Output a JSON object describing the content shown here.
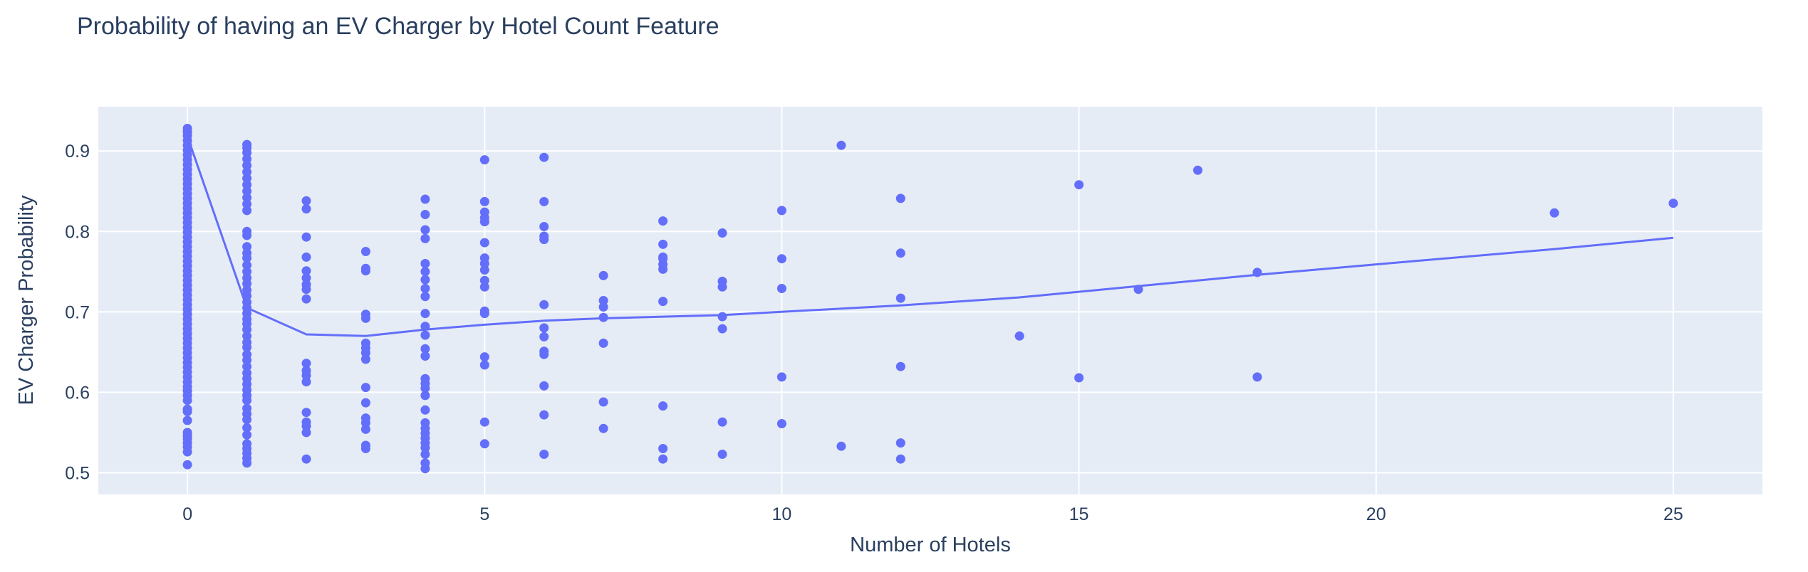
{
  "chart_data": {
    "type": "scatter",
    "title": "Probability of having an EV Charger by Hotel Count Feature",
    "xlabel": "Number of Hotels",
    "ylabel": "EV Charger Probability",
    "xlim": [
      -1.5,
      26.5
    ],
    "ylim": [
      0.473,
      0.955
    ],
    "xticks": [
      0,
      5,
      10,
      15,
      20,
      25
    ],
    "yticks": [
      0.5,
      0.6,
      0.7,
      0.8,
      0.9
    ],
    "tick_labels_x": [
      "0",
      "5",
      "10",
      "15",
      "20",
      "25"
    ],
    "tick_labels_y": [
      "0.5",
      "0.6",
      "0.7",
      "0.8",
      "0.9"
    ],
    "grid": true,
    "legend": "none",
    "marker_color": "#636efa",
    "plot_bg": "#e5ecf6",
    "series": [
      {
        "mode": "markers",
        "points": [
          [
            0,
            0.51
          ],
          [
            0,
            0.526
          ],
          [
            0,
            0.532
          ],
          [
            0,
            0.537
          ],
          [
            0,
            0.542
          ],
          [
            0,
            0.546
          ],
          [
            0,
            0.55
          ],
          [
            0,
            0.565
          ],
          [
            0,
            0.576
          ],
          [
            0,
            0.579
          ],
          [
            0,
            0.59
          ],
          [
            0,
            0.596
          ],
          [
            0,
            0.602
          ],
          [
            0,
            0.607
          ],
          [
            0,
            0.613
          ],
          [
            0,
            0.619
          ],
          [
            0,
            0.625
          ],
          [
            0,
            0.631
          ],
          [
            0,
            0.637
          ],
          [
            0,
            0.643
          ],
          [
            0,
            0.649
          ],
          [
            0,
            0.655
          ],
          [
            0,
            0.661
          ],
          [
            0,
            0.667
          ],
          [
            0,
            0.673
          ],
          [
            0,
            0.679
          ],
          [
            0,
            0.685
          ],
          [
            0,
            0.691
          ],
          [
            0,
            0.697
          ],
          [
            0,
            0.703
          ],
          [
            0,
            0.709
          ],
          [
            0,
            0.715
          ],
          [
            0,
            0.721
          ],
          [
            0,
            0.727
          ],
          [
            0,
            0.733
          ],
          [
            0,
            0.739
          ],
          [
            0,
            0.745
          ],
          [
            0,
            0.751
          ],
          [
            0,
            0.757
          ],
          [
            0,
            0.763
          ],
          [
            0,
            0.769
          ],
          [
            0,
            0.775
          ],
          [
            0,
            0.781
          ],
          [
            0,
            0.787
          ],
          [
            0,
            0.793
          ],
          [
            0,
            0.799
          ],
          [
            0,
            0.805
          ],
          [
            0,
            0.811
          ],
          [
            0,
            0.817
          ],
          [
            0,
            0.823
          ],
          [
            0,
            0.829
          ],
          [
            0,
            0.835
          ],
          [
            0,
            0.841
          ],
          [
            0,
            0.847
          ],
          [
            0,
            0.853
          ],
          [
            0,
            0.859
          ],
          [
            0,
            0.865
          ],
          [
            0,
            0.871
          ],
          [
            0,
            0.877
          ],
          [
            0,
            0.883
          ],
          [
            0,
            0.889
          ],
          [
            0,
            0.895
          ],
          [
            0,
            0.901
          ],
          [
            0,
            0.907
          ],
          [
            0,
            0.913
          ],
          [
            0,
            0.919
          ],
          [
            0,
            0.924
          ],
          [
            0,
            0.928
          ],
          [
            1,
            0.512
          ],
          [
            1,
            0.518
          ],
          [
            1,
            0.524
          ],
          [
            1,
            0.53
          ],
          [
            1,
            0.536
          ],
          [
            1,
            0.547
          ],
          [
            1,
            0.556
          ],
          [
            1,
            0.566
          ],
          [
            1,
            0.573
          ],
          [
            1,
            0.58
          ],
          [
            1,
            0.59
          ],
          [
            1,
            0.596
          ],
          [
            1,
            0.603
          ],
          [
            1,
            0.61
          ],
          [
            1,
            0.617
          ],
          [
            1,
            0.624
          ],
          [
            1,
            0.632
          ],
          [
            1,
            0.64
          ],
          [
            1,
            0.647
          ],
          [
            1,
            0.656
          ],
          [
            1,
            0.662
          ],
          [
            1,
            0.67
          ],
          [
            1,
            0.678
          ],
          [
            1,
            0.685
          ],
          [
            1,
            0.691
          ],
          [
            1,
            0.698
          ],
          [
            1,
            0.705
          ],
          [
            1,
            0.712
          ],
          [
            1,
            0.72
          ],
          [
            1,
            0.727
          ],
          [
            1,
            0.735
          ],
          [
            1,
            0.742
          ],
          [
            1,
            0.75
          ],
          [
            1,
            0.758
          ],
          [
            1,
            0.767
          ],
          [
            1,
            0.773
          ],
          [
            1,
            0.781
          ],
          [
            1,
            0.795
          ],
          [
            1,
            0.8
          ],
          [
            1,
            0.826
          ],
          [
            1,
            0.834
          ],
          [
            1,
            0.842
          ],
          [
            1,
            0.85
          ],
          [
            1,
            0.858
          ],
          [
            1,
            0.866
          ],
          [
            1,
            0.874
          ],
          [
            1,
            0.882
          ],
          [
            1,
            0.89
          ],
          [
            1,
            0.898
          ],
          [
            1,
            0.904
          ],
          [
            1,
            0.908
          ],
          [
            2,
            0.517
          ],
          [
            2,
            0.55
          ],
          [
            2,
            0.558
          ],
          [
            2,
            0.563
          ],
          [
            2,
            0.575
          ],
          [
            2,
            0.613
          ],
          [
            2,
            0.621
          ],
          [
            2,
            0.627
          ],
          [
            2,
            0.636
          ],
          [
            2,
            0.716
          ],
          [
            2,
            0.728
          ],
          [
            2,
            0.734
          ],
          [
            2,
            0.742
          ],
          [
            2,
            0.751
          ],
          [
            2,
            0.768
          ],
          [
            2,
            0.793
          ],
          [
            2,
            0.828
          ],
          [
            2,
            0.838
          ],
          [
            3,
            0.53
          ],
          [
            3,
            0.534
          ],
          [
            3,
            0.554
          ],
          [
            3,
            0.562
          ],
          [
            3,
            0.568
          ],
          [
            3,
            0.587
          ],
          [
            3,
            0.606
          ],
          [
            3,
            0.641
          ],
          [
            3,
            0.649
          ],
          [
            3,
            0.655
          ],
          [
            3,
            0.661
          ],
          [
            3,
            0.692
          ],
          [
            3,
            0.697
          ],
          [
            3,
            0.751
          ],
          [
            3,
            0.754
          ],
          [
            3,
            0.775
          ],
          [
            4,
            0.505
          ],
          [
            4,
            0.512
          ],
          [
            4,
            0.523
          ],
          [
            4,
            0.531
          ],
          [
            4,
            0.537
          ],
          [
            4,
            0.543
          ],
          [
            4,
            0.549
          ],
          [
            4,
            0.555
          ],
          [
            4,
            0.562
          ],
          [
            4,
            0.578
          ],
          [
            4,
            0.596
          ],
          [
            4,
            0.605
          ],
          [
            4,
            0.611
          ],
          [
            4,
            0.617
          ],
          [
            4,
            0.645
          ],
          [
            4,
            0.654
          ],
          [
            4,
            0.671
          ],
          [
            4,
            0.682
          ],
          [
            4,
            0.698
          ],
          [
            4,
            0.719
          ],
          [
            4,
            0.729
          ],
          [
            4,
            0.74
          ],
          [
            4,
            0.75
          ],
          [
            4,
            0.76
          ],
          [
            4,
            0.791
          ],
          [
            4,
            0.802
          ],
          [
            4,
            0.821
          ],
          [
            4,
            0.84
          ],
          [
            5,
            0.536
          ],
          [
            5,
            0.563
          ],
          [
            5,
            0.634
          ],
          [
            5,
            0.644
          ],
          [
            5,
            0.698
          ],
          [
            5,
            0.701
          ],
          [
            5,
            0.731
          ],
          [
            5,
            0.739
          ],
          [
            5,
            0.752
          ],
          [
            5,
            0.76
          ],
          [
            5,
            0.767
          ],
          [
            5,
            0.786
          ],
          [
            5,
            0.812
          ],
          [
            5,
            0.817
          ],
          [
            5,
            0.824
          ],
          [
            5,
            0.837
          ],
          [
            5,
            0.889
          ],
          [
            6,
            0.523
          ],
          [
            6,
            0.572
          ],
          [
            6,
            0.608
          ],
          [
            6,
            0.647
          ],
          [
            6,
            0.651
          ],
          [
            6,
            0.669
          ],
          [
            6,
            0.68
          ],
          [
            6,
            0.709
          ],
          [
            6,
            0.79
          ],
          [
            6,
            0.794
          ],
          [
            6,
            0.806
          ],
          [
            6,
            0.837
          ],
          [
            6,
            0.892
          ],
          [
            7,
            0.555
          ],
          [
            7,
            0.588
          ],
          [
            7,
            0.661
          ],
          [
            7,
            0.693
          ],
          [
            7,
            0.706
          ],
          [
            7,
            0.714
          ],
          [
            7,
            0.745
          ],
          [
            8,
            0.517
          ],
          [
            8,
            0.53
          ],
          [
            8,
            0.583
          ],
          [
            8,
            0.713
          ],
          [
            8,
            0.753
          ],
          [
            8,
            0.759
          ],
          [
            8,
            0.766
          ],
          [
            8,
            0.768
          ],
          [
            8,
            0.784
          ],
          [
            8,
            0.813
          ],
          [
            9,
            0.523
          ],
          [
            9,
            0.563
          ],
          [
            9,
            0.679
          ],
          [
            9,
            0.694
          ],
          [
            9,
            0.731
          ],
          [
            9,
            0.738
          ],
          [
            9,
            0.798
          ],
          [
            10,
            0.561
          ],
          [
            10,
            0.619
          ],
          [
            10,
            0.729
          ],
          [
            10,
            0.766
          ],
          [
            10,
            0.826
          ],
          [
            11,
            0.533
          ],
          [
            11,
            0.907
          ],
          [
            12,
            0.517
          ],
          [
            12,
            0.537
          ],
          [
            12,
            0.632
          ],
          [
            12,
            0.717
          ],
          [
            12,
            0.773
          ],
          [
            12,
            0.841
          ],
          [
            14,
            0.67
          ],
          [
            15,
            0.618
          ],
          [
            15,
            0.858
          ],
          [
            16,
            0.728
          ],
          [
            17,
            0.876
          ],
          [
            18,
            0.619
          ],
          [
            18,
            0.749
          ],
          [
            23,
            0.823
          ],
          [
            25,
            0.835
          ]
        ]
      },
      {
        "mode": "lines",
        "points": [
          [
            0,
            0.918
          ],
          [
            1,
            0.705
          ],
          [
            2,
            0.672
          ],
          [
            3,
            0.67
          ],
          [
            4,
            0.678
          ],
          [
            5,
            0.684
          ],
          [
            6,
            0.689
          ],
          [
            7,
            0.692
          ],
          [
            8,
            0.694
          ],
          [
            9,
            0.696
          ],
          [
            10,
            0.7
          ],
          [
            12,
            0.708
          ],
          [
            14,
            0.718
          ],
          [
            15,
            0.725
          ],
          [
            16,
            0.732
          ],
          [
            17,
            0.739
          ],
          [
            18,
            0.746
          ],
          [
            20,
            0.759
          ],
          [
            23,
            0.778
          ],
          [
            25,
            0.792
          ]
        ]
      }
    ]
  }
}
